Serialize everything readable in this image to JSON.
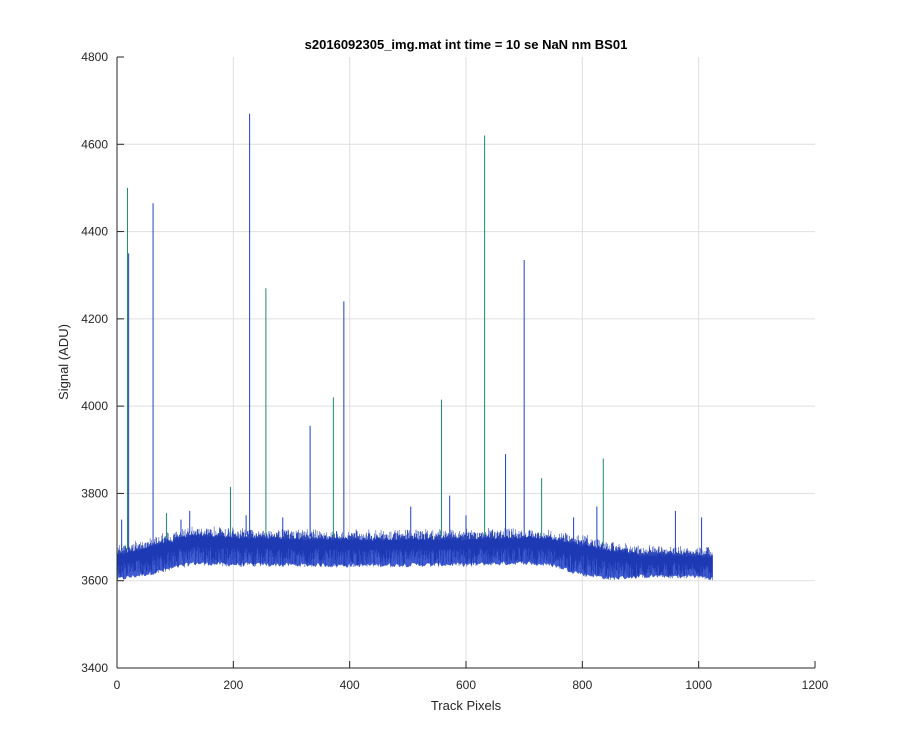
{
  "chart_data": {
    "type": "line",
    "title": "s2016092305_img.mat int time = 10 se  NaN nm BS01",
    "xlabel": "Track Pixels",
    "ylabel": "Signal (ADU)",
    "xlim": [
      0,
      1200
    ],
    "ylim": [
      3400,
      4800
    ],
    "xticks": [
      0,
      200,
      400,
      600,
      800,
      1000,
      1200
    ],
    "yticks": [
      3400,
      3600,
      3800,
      4000,
      4200,
      4400,
      4600,
      4800
    ],
    "xtick_labels": [
      "0",
      "200",
      "400",
      "600",
      "800",
      "1000",
      "1200"
    ],
    "ytick_labels": [
      "3400",
      "3600",
      "3800",
      "4000",
      "4200",
      "4400",
      "4600",
      "4800"
    ],
    "grid": true,
    "legend": "none",
    "x_range_of_data": [
      1,
      1024
    ],
    "baseline_profile": {
      "x": [
        0,
        50,
        100,
        130,
        200,
        400,
        600,
        700,
        750,
        800,
        850,
        900,
        1000,
        1024
      ],
      "upper": [
        3665,
        3682,
        3700,
        3710,
        3705,
        3700,
        3702,
        3705,
        3700,
        3690,
        3675,
        3665,
        3662,
        3660
      ],
      "lower": [
        3598,
        3610,
        3625,
        3635,
        3632,
        3630,
        3632,
        3636,
        3630,
        3610,
        3600,
        3605,
        3605,
        3600
      ]
    },
    "spikes": [
      {
        "x": 8,
        "y": 3740
      },
      {
        "x": 18,
        "y": 4500
      },
      {
        "x": 20,
        "y": 4350
      },
      {
        "x": 62,
        "y": 4465
      },
      {
        "x": 85,
        "y": 3755
      },
      {
        "x": 110,
        "y": 3740
      },
      {
        "x": 125,
        "y": 3760
      },
      {
        "x": 195,
        "y": 3815
      },
      {
        "x": 222,
        "y": 3750
      },
      {
        "x": 228,
        "y": 4670
      },
      {
        "x": 256,
        "y": 4270
      },
      {
        "x": 285,
        "y": 3745
      },
      {
        "x": 332,
        "y": 3955
      },
      {
        "x": 372,
        "y": 4020
      },
      {
        "x": 390,
        "y": 4240
      },
      {
        "x": 505,
        "y": 3770
      },
      {
        "x": 558,
        "y": 4015
      },
      {
        "x": 572,
        "y": 3795
      },
      {
        "x": 600,
        "y": 3750
      },
      {
        "x": 632,
        "y": 4620
      },
      {
        "x": 668,
        "y": 3890
      },
      {
        "x": 700,
        "y": 4335
      },
      {
        "x": 730,
        "y": 3835
      },
      {
        "x": 785,
        "y": 3745
      },
      {
        "x": 825,
        "y": 3770
      },
      {
        "x": 836,
        "y": 3880
      },
      {
        "x": 960,
        "y": 3760
      },
      {
        "x": 1005,
        "y": 3745
      }
    ],
    "colors": {
      "series_primary": "#2040c8",
      "series_secondary": "#1f8a6a",
      "spike_highlight": "#8a8a1a"
    }
  }
}
